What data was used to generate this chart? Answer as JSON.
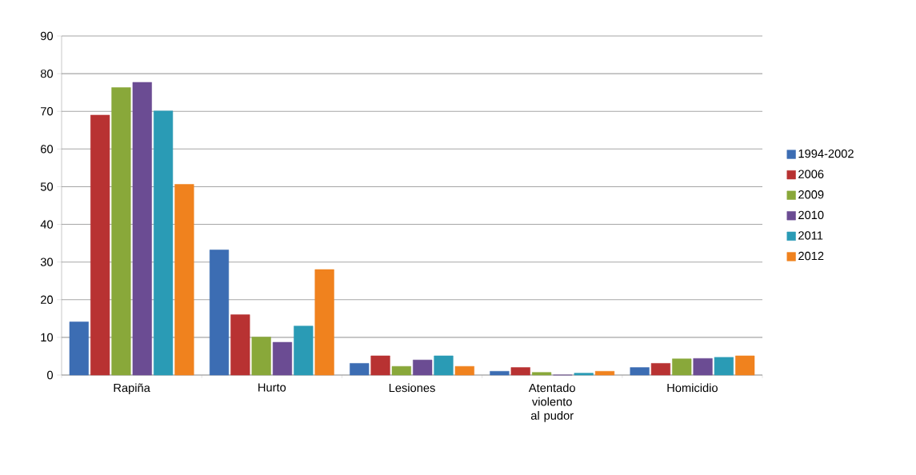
{
  "chart_data": {
    "type": "bar",
    "categories": [
      "Rapiña",
      "Hurto",
      "Lesiones",
      "Atentado violento al pudor",
      "Homicidio"
    ],
    "series": [
      {
        "name": "1994-2002",
        "color": "#3c6db3",
        "values": [
          14.1,
          33.2,
          3.1,
          1.0,
          2.0
        ]
      },
      {
        "name": "2006",
        "color": "#b83232",
        "values": [
          69.0,
          16.0,
          5.1,
          2.0,
          3.1
        ]
      },
      {
        "name": "2009",
        "color": "#89a83a",
        "values": [
          76.3,
          10.1,
          2.3,
          0.7,
          4.3
        ]
      },
      {
        "name": "2010",
        "color": "#6b4c93",
        "values": [
          77.7,
          8.7,
          4.0,
          0,
          4.4
        ]
      },
      {
        "name": "2011",
        "color": "#2a9bb5",
        "values": [
          70.1,
          13.0,
          5.1,
          0.5,
          4.7
        ]
      },
      {
        "name": "2012",
        "color": "#f0821e",
        "values": [
          50.6,
          28.0,
          2.3,
          1.0,
          5.1
        ]
      }
    ],
    "ylim": [
      0,
      90
    ],
    "yticks": [
      0,
      10,
      20,
      30,
      40,
      50,
      60,
      70,
      80,
      90
    ],
    "grid": "y",
    "legend": "right"
  }
}
